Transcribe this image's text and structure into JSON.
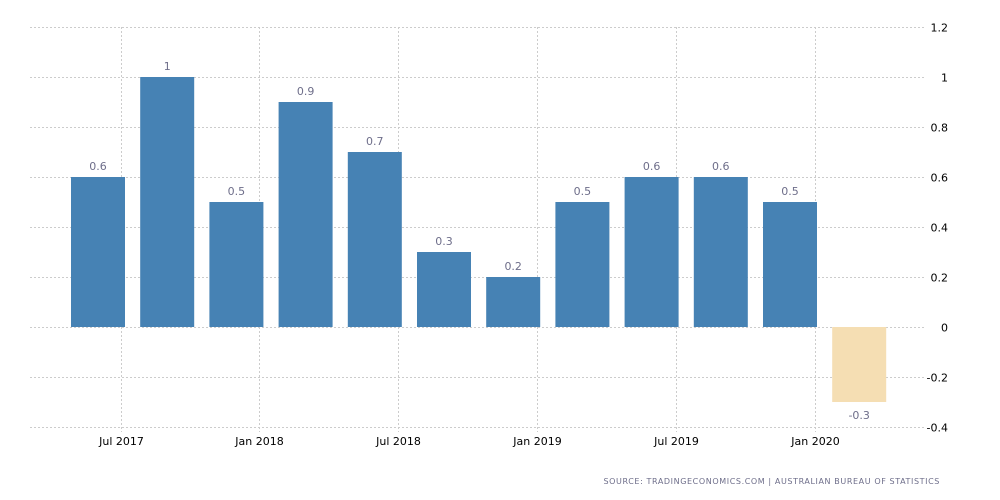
{
  "chart_data": {
    "type": "bar",
    "x": [
      "2017-06",
      "2017-09",
      "2017-12",
      "2018-03",
      "2018-06",
      "2018-09",
      "2018-12",
      "2019-03",
      "2019-06",
      "2019-09",
      "2019-12",
      "2020-03"
    ],
    "values": [
      0.6,
      1,
      0.5,
      0.9,
      0.7,
      0.3,
      0.2,
      0.5,
      0.6,
      0.6,
      0.5,
      -0.3
    ],
    "data_labels": [
      "0.6",
      "1",
      "0.5",
      "0.9",
      "0.7",
      "0.3",
      "0.2",
      "0.5",
      "0.6",
      "0.6",
      "0.5",
      "-0.3"
    ],
    "title": "",
    "xlabel": "",
    "ylabel": "",
    "ylim": [
      -0.4,
      1.2
    ],
    "y_ticks": [
      "1.2",
      "1",
      "0.8",
      "0.6",
      "0.4",
      "0.2",
      "0",
      "-0.2",
      "-0.4"
    ],
    "y_tick_values": [
      1.2,
      1,
      0.8,
      0.6,
      0.4,
      0.2,
      0,
      -0.2,
      -0.4
    ],
    "x_ticks": [
      "Jul 2017",
      "Jan 2018",
      "Jul 2018",
      "Jan 2019",
      "Jul 2019",
      "Jan 2020"
    ],
    "y_axis_position": "right",
    "grid": true,
    "colors": {
      "positive": "#4682b4",
      "negative": "#f5deb3",
      "grid": "#cccccc",
      "data_label": "#6e6e8a"
    }
  },
  "source": "SOURCE: TRADINGECONOMICS.COM  |  AUSTRALIAN BUREAU OF STATISTICS"
}
